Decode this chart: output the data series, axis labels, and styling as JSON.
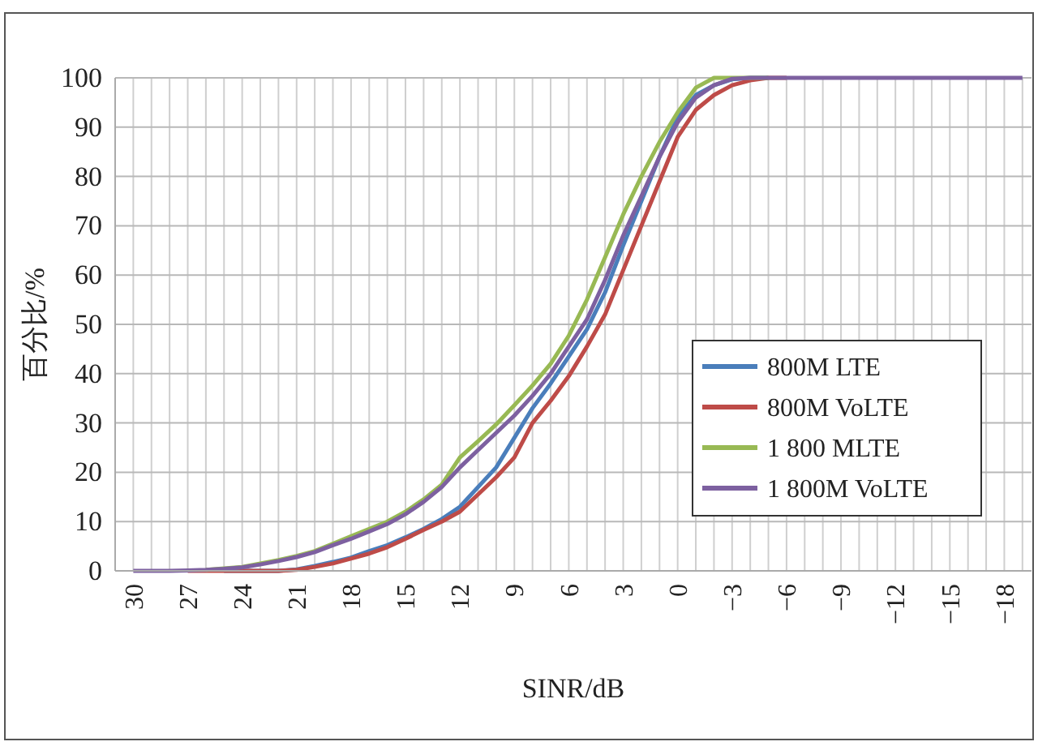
{
  "chart_data": {
    "type": "line",
    "xlabel": "SINR/dB",
    "ylabel": "百分比/%",
    "x": [
      30,
      29,
      28,
      27,
      26,
      25,
      24,
      23,
      22,
      21,
      20,
      19,
      18,
      17,
      16,
      15,
      14,
      13,
      12,
      11,
      10,
      9,
      8,
      7,
      6,
      5,
      4,
      3,
      2,
      1,
      0,
      -1,
      -2,
      -3,
      -4,
      -5,
      -6,
      -7,
      -8,
      -9,
      -10,
      -11,
      -12,
      -13,
      -14,
      -15,
      -16,
      -17,
      -18,
      -19
    ],
    "xlim": [
      31,
      -19.5
    ],
    "xticks": [
      30,
      {
        "value": 29,
        "label": null
      },
      {
        "value": 28,
        "label": null
      },
      27,
      {
        "value": 26,
        "label": null
      },
      {
        "value": 25,
        "label": null
      },
      24,
      {
        "value": 23,
        "label": null
      },
      {
        "value": 22,
        "label": null
      },
      21,
      {
        "value": 20,
        "label": null
      },
      {
        "value": 19,
        "label": null
      },
      18,
      {
        "value": 17,
        "label": null
      },
      {
        "value": 16,
        "label": null
      },
      15,
      {
        "value": 14,
        "label": null
      },
      {
        "value": 13,
        "label": null
      },
      12,
      {
        "value": 11,
        "label": null
      },
      {
        "value": 10,
        "label": null
      },
      9,
      {
        "value": 8,
        "label": null
      },
      {
        "value": 7,
        "label": null
      },
      6,
      {
        "value": 5,
        "label": null
      },
      {
        "value": 4,
        "label": null
      },
      3,
      {
        "value": 2,
        "label": null
      },
      {
        "value": 1,
        "label": null
      },
      0,
      {
        "value": -1,
        "label": null
      },
      {
        "value": -2,
        "label": null
      },
      {
        "value": -3,
        "label": "−3"
      },
      {
        "value": -4,
        "label": null
      },
      {
        "value": -5,
        "label": null
      },
      {
        "value": -6,
        "label": "−6"
      },
      {
        "value": -7,
        "label": null
      },
      {
        "value": -8,
        "label": null
      },
      {
        "value": -9,
        "label": "−9"
      },
      {
        "value": -10,
        "label": null
      },
      {
        "value": -11,
        "label": null
      },
      {
        "value": -12,
        "label": "−12"
      },
      {
        "value": -13,
        "label": null
      },
      {
        "value": -14,
        "label": null
      },
      {
        "value": -15,
        "label": "−15"
      },
      {
        "value": -16,
        "label": null
      },
      {
        "value": -17,
        "label": null
      },
      {
        "value": -18,
        "label": "−18"
      },
      {
        "value": -19,
        "label": null
      }
    ],
    "ylim": [
      0,
      100
    ],
    "yticks": [
      0,
      10,
      20,
      30,
      40,
      50,
      60,
      70,
      80,
      90,
      100
    ],
    "grid": true,
    "legend": "right",
    "marker": "none",
    "line_style": "solid",
    "series": [
      {
        "name": "800M LTE",
        "color": "#4a7ebb",
        "values": [
          null,
          null,
          null,
          null,
          null,
          0,
          0,
          0,
          0,
          0.3,
          1,
          1.8,
          2.7,
          4,
          5.2,
          6.8,
          8.5,
          10.5,
          13,
          17,
          21,
          27,
          33,
          38,
          43.5,
          49,
          56.5,
          66,
          75,
          84,
          92,
          96.5,
          98.5,
          99.7,
          100,
          100,
          null,
          null,
          null,
          null,
          null,
          null,
          null,
          null,
          null,
          null,
          null,
          null,
          null,
          null
        ]
      },
      {
        "name": "800M VoLTE",
        "color": "#be4b48",
        "values": [
          null,
          null,
          null,
          0,
          0,
          0,
          0,
          0,
          0,
          0.2,
          0.8,
          1.5,
          2.5,
          3.5,
          4.8,
          6.5,
          8.3,
          10,
          12,
          15.5,
          19,
          23,
          30,
          34.5,
          39.5,
          45.5,
          52,
          61,
          70,
          79,
          88,
          93.5,
          96.5,
          98.5,
          99.5,
          100,
          100,
          null,
          null,
          null,
          null,
          null,
          null,
          null,
          null,
          null,
          null,
          null,
          null,
          null
        ]
      },
      {
        "name": "1 800 MLTE",
        "color": "#98b954",
        "values": [
          null,
          null,
          null,
          null,
          0.2,
          0.5,
          0.8,
          1.5,
          2.2,
          3,
          4,
          5.5,
          7,
          8.5,
          10,
          12,
          14.5,
          17.5,
          23,
          26.3,
          29.7,
          33.6,
          37.6,
          42,
          47.7,
          55,
          63.6,
          72.3,
          80,
          87,
          93,
          98,
          100,
          100,
          100,
          100,
          null,
          null,
          null,
          null,
          null,
          null,
          null,
          null,
          null,
          null,
          null,
          null,
          null,
          null
        ]
      },
      {
        "name": "1 800M VoLTE",
        "color": "#7d60a0",
        "values": [
          0,
          0,
          0,
          0.1,
          0.2,
          0.4,
          0.7,
          1.3,
          2,
          2.8,
          3.8,
          5.2,
          6.5,
          8,
          9.5,
          11.5,
          14,
          17,
          21,
          24.5,
          28,
          31.5,
          35.5,
          40,
          45.5,
          51,
          59,
          68,
          76,
          84,
          91,
          96,
          98.5,
          99.8,
          100,
          100,
          100,
          100,
          100,
          100,
          100,
          100,
          100,
          100,
          100,
          100,
          100,
          100,
          100,
          100
        ]
      }
    ]
  }
}
